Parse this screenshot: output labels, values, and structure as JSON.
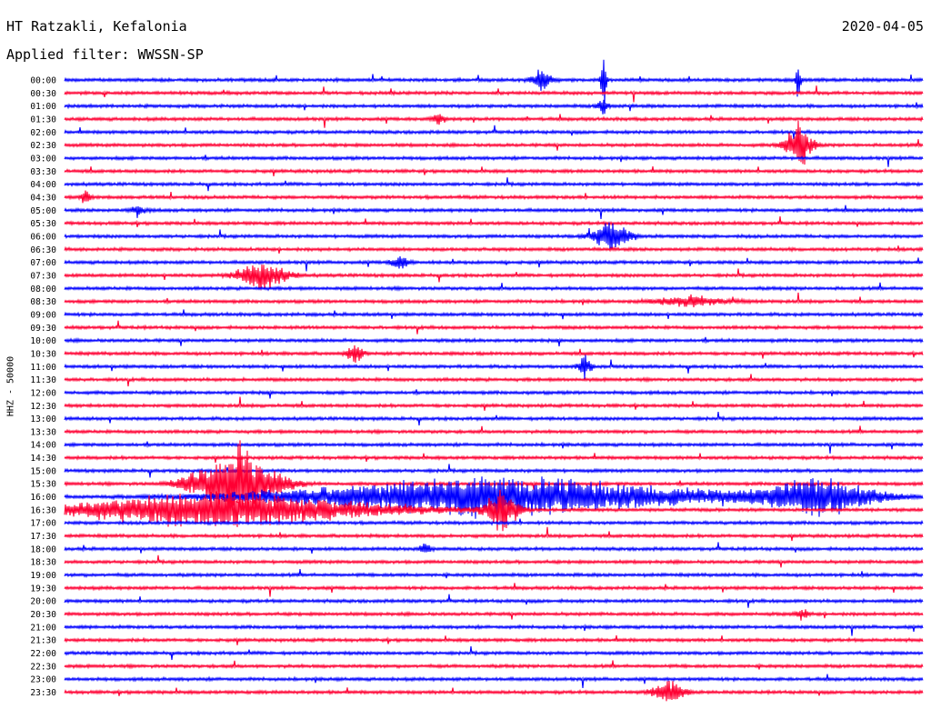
{
  "header": {
    "station": "HT Ratzakli, Kefalonia",
    "date": "2020-04-05",
    "filter": "Applied filter: WWSSN-SP"
  },
  "chart_data": {
    "type": "line",
    "title": "HT Ratzakli, Kefalonia",
    "date": "2020-04-05",
    "filter": "WWSSN-SP",
    "ylabel": "HHZ - 50000",
    "row_labels": [
      "00:00",
      "00:30",
      "01:00",
      "01:30",
      "02:00",
      "02:30",
      "03:00",
      "03:30",
      "04:00",
      "04:30",
      "05:00",
      "05:30",
      "06:00",
      "06:30",
      "07:00",
      "07:30",
      "08:00",
      "08:30",
      "09:00",
      "09:30",
      "10:00",
      "10:30",
      "11:00",
      "11:30",
      "12:00",
      "12:30",
      "13:00",
      "13:30",
      "14:00",
      "14:30",
      "15:00",
      "15:30",
      "16:00",
      "16:30",
      "17:00",
      "17:30",
      "18:00",
      "18:30",
      "19:00",
      "19:30",
      "20:00",
      "20:30",
      "21:00",
      "21:30",
      "22:00",
      "22:30",
      "23:00",
      "23:30"
    ],
    "row_colors": [
      "#0000ff",
      "#ff0033"
    ],
    "grid": false,
    "events": [
      {
        "row": "00:00",
        "x_frac": 0.556,
        "amp": 16,
        "dur": 0.025
      },
      {
        "row": "00:00",
        "x_frac": 0.628,
        "amp": 55,
        "dur": 0.006
      },
      {
        "row": "00:00",
        "x_frac": 0.855,
        "amp": 36,
        "dur": 0.005
      },
      {
        "row": "01:00",
        "x_frac": 0.627,
        "amp": 14,
        "dur": 0.012
      },
      {
        "row": "01:30",
        "x_frac": 0.436,
        "amp": 8,
        "dur": 0.015
      },
      {
        "row": "02:30",
        "x_frac": 0.855,
        "amp": 38,
        "dur": 0.03
      },
      {
        "row": "04:30",
        "x_frac": 0.025,
        "amp": 12,
        "dur": 0.012
      },
      {
        "row": "05:00",
        "x_frac": 0.087,
        "amp": 6,
        "dur": 0.02
      },
      {
        "row": "06:00",
        "x_frac": 0.637,
        "amp": 22,
        "dur": 0.045
      },
      {
        "row": "07:00",
        "x_frac": 0.391,
        "amp": 10,
        "dur": 0.02
      },
      {
        "row": "07:30",
        "x_frac": 0.23,
        "amp": 20,
        "dur": 0.06
      },
      {
        "row": "08:30",
        "x_frac": 0.73,
        "amp": 7,
        "dur": 0.09
      },
      {
        "row": "10:30",
        "x_frac": 0.338,
        "amp": 14,
        "dur": 0.02
      },
      {
        "row": "11:00",
        "x_frac": 0.606,
        "amp": 16,
        "dur": 0.015
      },
      {
        "row": "15:30",
        "x_frac": 0.2,
        "amp": 55,
        "dur": 0.1
      },
      {
        "row": "16:00",
        "x_frac": 0.5,
        "amp": 30,
        "dur": 0.5
      },
      {
        "row": "16:00",
        "x_frac": 0.88,
        "amp": 26,
        "dur": 0.14
      },
      {
        "row": "16:30",
        "x_frac": 0.18,
        "amp": 25,
        "dur": 0.4
      },
      {
        "row": "16:30",
        "x_frac": 0.51,
        "amp": 30,
        "dur": 0.04
      },
      {
        "row": "18:00",
        "x_frac": 0.42,
        "amp": 8,
        "dur": 0.015
      },
      {
        "row": "20:30",
        "x_frac": 0.86,
        "amp": 8,
        "dur": 0.015
      },
      {
        "row": "23:30",
        "x_frac": 0.704,
        "amp": 20,
        "dur": 0.035
      }
    ]
  }
}
